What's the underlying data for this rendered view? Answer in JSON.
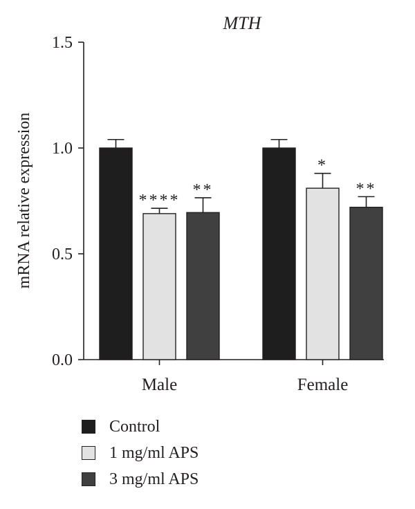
{
  "chart_data": {
    "type": "bar",
    "title": "MTH",
    "ylabel": "mRNA relative expression",
    "xlabel": "",
    "ylim": [
      0,
      1.5
    ],
    "yticks": [
      "0.0",
      "0.5",
      "1.0",
      "1.5"
    ],
    "categories": [
      "Male",
      "Female"
    ],
    "series": [
      {
        "name": "Control",
        "color": "#1e1e1e",
        "values": [
          1.0,
          1.0
        ],
        "errors": [
          0.04,
          0.04
        ],
        "significance": [
          "",
          ""
        ]
      },
      {
        "name": "1 mg/ml APS",
        "color": "#e2e2e2",
        "values": [
          0.69,
          0.81
        ],
        "errors": [
          0.025,
          0.07
        ],
        "significance": [
          "****",
          "*"
        ]
      },
      {
        "name": "3 mg/ml APS",
        "color": "#404040",
        "values": [
          0.695,
          0.72
        ],
        "errors": [
          0.07,
          0.05
        ],
        "significance": [
          "**",
          "**"
        ]
      }
    ],
    "legend_placement": "bottom-left",
    "grid": false
  }
}
